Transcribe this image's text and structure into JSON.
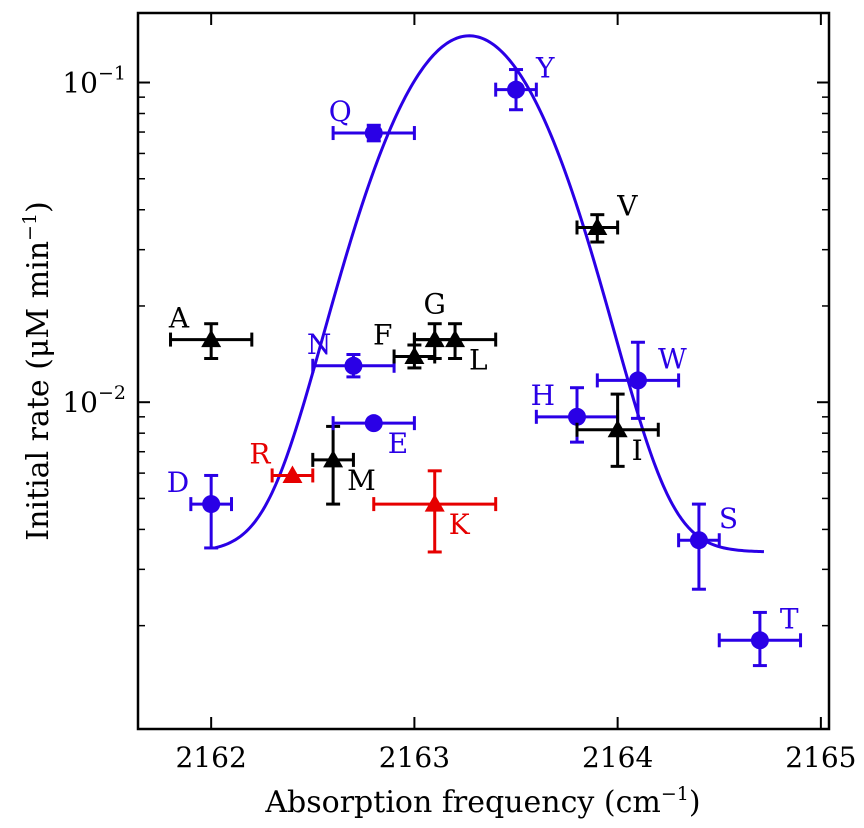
{
  "chart_data": {
    "type": "scatter",
    "title": "",
    "xlabel": "Absorption frequency (cm",
    "xlabel_sup": "−1",
    "xlabel_close": ")",
    "ylabel": "Initial rate (μM min",
    "ylabel_sup": "−1",
    "ylabel_close": ")",
    "x_scale": "linear",
    "y_scale": "log",
    "xlim": [
      2161.64,
      2165.04
    ],
    "ylim": [
      0.00095,
      0.165
    ],
    "x_ticks": [
      2162,
      2163,
      2164,
      2165
    ],
    "x_tick_labels": [
      "2162",
      "2163",
      "2164",
      "2165"
    ],
    "y_major_ticks": [
      0.01,
      0.1
    ],
    "y_tick_labels": [
      {
        "base": "10",
        "exp": "−2"
      },
      {
        "base": "10",
        "exp": "−1"
      }
    ],
    "grid": false,
    "colors": {
      "blue": "#2a00e6",
      "black": "#000000",
      "red": "#e60000"
    },
    "fit_curve": {
      "color": "#2a00e6",
      "x_range": [
        2162.02,
        2164.72
      ],
      "baseline": 0.0034,
      "peak": 0.14,
      "center": 2163.27,
      "sigma": 0.33
    },
    "points": [
      {
        "label": "A",
        "marker": "triangle",
        "color": "#000000",
        "x": 2162.0,
        "y": 0.0157,
        "xerr": 0.2,
        "ylo": 0.0137,
        "yhi": 0.0176,
        "label_pos": "upper-left"
      },
      {
        "label": "D",
        "marker": "circle",
        "color": "#2a00e6",
        "x": 2162.0,
        "y": 0.0048,
        "xerr": 0.1,
        "ylo": 0.0035,
        "yhi": 0.0059,
        "label_pos": "upper-left"
      },
      {
        "label": "R",
        "marker": "triangle",
        "color": "#e60000",
        "x": 2162.4,
        "y": 0.0059,
        "xerr": 0.1,
        "ylo": 0.0059,
        "yhi": 0.0059,
        "label_pos": "upper-left"
      },
      {
        "label": "M",
        "marker": "triangle",
        "color": "#000000",
        "x": 2162.6,
        "y": 0.0066,
        "xerr": 0.1,
        "ylo": 0.0048,
        "yhi": 0.0084,
        "label_pos": "lower-right"
      },
      {
        "label": "N",
        "marker": "circle",
        "color": "#2a00e6",
        "x": 2162.7,
        "y": 0.013,
        "xerr": 0.2,
        "ylo": 0.012,
        "yhi": 0.0141,
        "label_pos": "upper-left"
      },
      {
        "label": "Q",
        "marker": "circle",
        "color": "#2a00e6",
        "x": 2162.8,
        "y": 0.0695,
        "xerr": 0.2,
        "ylo": 0.0657,
        "yhi": 0.0735,
        "label_pos": "upper-left"
      },
      {
        "label": "E",
        "marker": "circle",
        "color": "#2a00e6",
        "x": 2162.8,
        "y": 0.0086,
        "xerr": 0.2,
        "ylo": 0.0086,
        "yhi": 0.0086,
        "label_pos": "lower-right"
      },
      {
        "label": "F",
        "marker": "triangle",
        "color": "#000000",
        "x": 2163.0,
        "y": 0.0139,
        "xerr": 0.1,
        "ylo": 0.0128,
        "yhi": 0.0151,
        "label_pos": "upper-left"
      },
      {
        "label": "G",
        "marker": "triangle",
        "color": "#000000",
        "x": 2163.1,
        "y": 0.0157,
        "xerr": 0.1,
        "ylo": 0.0137,
        "yhi": 0.0176,
        "label_pos": "above"
      },
      {
        "label": "L",
        "marker": "triangle",
        "color": "#000000",
        "x": 2163.2,
        "y": 0.0157,
        "xerr": 0.2,
        "ylo": 0.0137,
        "yhi": 0.0176,
        "label_pos": "lower-right"
      },
      {
        "label": "K",
        "marker": "triangle",
        "color": "#e60000",
        "x": 2163.1,
        "y": 0.0048,
        "xerr": 0.3,
        "ylo": 0.0034,
        "yhi": 0.0061,
        "label_pos": "lower-right"
      },
      {
        "label": "Y",
        "marker": "circle",
        "color": "#2a00e6",
        "x": 2163.5,
        "y": 0.095,
        "xerr": 0.1,
        "ylo": 0.0822,
        "yhi": 0.1098,
        "label_pos": "upper-right"
      },
      {
        "label": "H",
        "marker": "circle",
        "color": "#2a00e6",
        "x": 2163.8,
        "y": 0.009,
        "xerr": 0.2,
        "ylo": 0.0075,
        "yhi": 0.0111,
        "label_pos": "upper-left"
      },
      {
        "label": "I",
        "marker": "triangle",
        "color": "#000000",
        "x": 2164.0,
        "y": 0.0082,
        "xerr": 0.2,
        "ylo": 0.0063,
        "yhi": 0.0106,
        "label_pos": "lower-right"
      },
      {
        "label": "V",
        "marker": "triangle",
        "color": "#000000",
        "x": 2163.9,
        "y": 0.0352,
        "xerr": 0.1,
        "ylo": 0.0317,
        "yhi": 0.0386,
        "label_pos": "upper-right"
      },
      {
        "label": "W",
        "marker": "circle",
        "color": "#2a00e6",
        "x": 2164.1,
        "y": 0.0117,
        "xerr": 0.2,
        "ylo": 0.0089,
        "yhi": 0.0154,
        "label_pos": "upper-right"
      },
      {
        "label": "S",
        "marker": "circle",
        "color": "#2a00e6",
        "x": 2164.4,
        "y": 0.0037,
        "xerr": 0.1,
        "ylo": 0.0026,
        "yhi": 0.0048,
        "label_pos": "upper-right"
      },
      {
        "label": "T",
        "marker": "circle",
        "color": "#2a00e6",
        "x": 2164.7,
        "y": 0.0018,
        "xerr": 0.2,
        "ylo": 0.0015,
        "yhi": 0.0022,
        "label_pos": "upper-right"
      }
    ]
  }
}
